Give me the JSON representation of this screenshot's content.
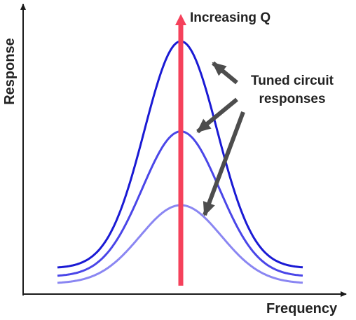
{
  "labels": {
    "y_axis": "Response",
    "x_axis": "Frequency",
    "arrow": "Increasing Q",
    "curves_line1": "Tuned circuit",
    "curves_line2": "responses"
  },
  "curves": [
    {
      "name": "high-q",
      "peak_level": 0.9,
      "color": "#1a1ad4"
    },
    {
      "name": "medium-q",
      "peak_level": 0.57,
      "color": "#4a46e8"
    },
    {
      "name": "low-q",
      "peak_level": 0.3,
      "color": "#8a86f2"
    }
  ],
  "colors": {
    "axis": "#1a1a1a",
    "q_arrow": "#f5415b",
    "pointer_arrows": "#4d4d4d",
    "background": "#ffffff"
  }
}
